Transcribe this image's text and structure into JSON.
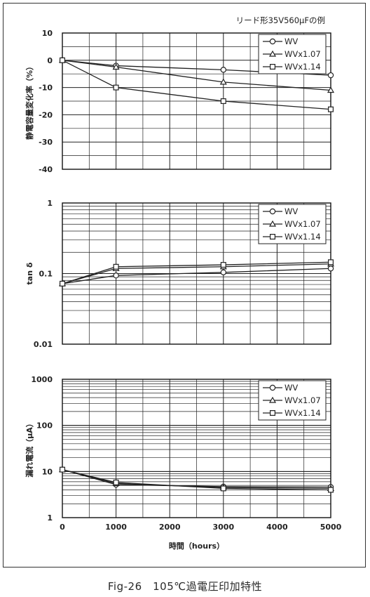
{
  "caption": "Fig-26　105℃過電圧印加特性",
  "chart_data": [
    {
      "type": "line",
      "title": "リード形35V560μFの例",
      "ylabel": "静電容量変化率（%）",
      "xlabel": "",
      "ylim": [
        -40,
        10
      ],
      "yticks": [
        10,
        0,
        -10,
        -20,
        -30,
        -40
      ],
      "yscale": "linear",
      "x": [
        0,
        1000,
        3000,
        5000
      ],
      "xlim": [
        0,
        5000
      ],
      "legend_position": "top-right",
      "series": [
        {
          "name": "WV",
          "marker": "circle",
          "values": [
            0,
            -2,
            -3.5,
            -5.5
          ]
        },
        {
          "name": "WVx1.07",
          "marker": "triangle",
          "values": [
            0,
            -2.5,
            -8,
            -11
          ]
        },
        {
          "name": "WVx1.14",
          "marker": "square",
          "values": [
            0,
            -10,
            -15,
            -18
          ]
        }
      ]
    },
    {
      "type": "line",
      "ylabel": "tan δ",
      "xlabel": "",
      "yscale": "log",
      "ylim": [
        0.01,
        1
      ],
      "yticks": [
        1,
        0.1,
        0.01
      ],
      "x": [
        0,
        1000,
        3000,
        5000
      ],
      "xlim": [
        0,
        5000
      ],
      "legend_position": "top-right",
      "series": [
        {
          "name": "WV",
          "marker": "circle",
          "values": [
            0.072,
            0.094,
            0.104,
            0.118
          ]
        },
        {
          "name": "WVx1.07",
          "marker": "triangle",
          "values": [
            0.072,
            0.118,
            0.125,
            0.137
          ]
        },
        {
          "name": "WVx1.14",
          "marker": "square",
          "values": [
            0.072,
            0.125,
            0.133,
            0.145
          ]
        }
      ]
    },
    {
      "type": "line",
      "ylabel": "漏れ電流（μA）",
      "xlabel": "時間（hours）",
      "yscale": "log",
      "ylim": [
        1,
        1000
      ],
      "yticks": [
        1000,
        100,
        10,
        1
      ],
      "x": [
        0,
        1000,
        3000,
        5000
      ],
      "xlim": [
        0,
        5000
      ],
      "xticks": [
        0,
        1000,
        2000,
        3000,
        4000,
        5000
      ],
      "legend_position": "top-right",
      "series": [
        {
          "name": "WV",
          "marker": "circle",
          "values": [
            11,
            5.2,
            4.7,
            4.6
          ]
        },
        {
          "name": "WVx1.07",
          "marker": "triangle",
          "values": [
            11,
            5.5,
            4.5,
            4.3
          ]
        },
        {
          "name": "WVx1.14",
          "marker": "square",
          "values": [
            11,
            5.8,
            4.3,
            4.0
          ]
        }
      ]
    }
  ]
}
